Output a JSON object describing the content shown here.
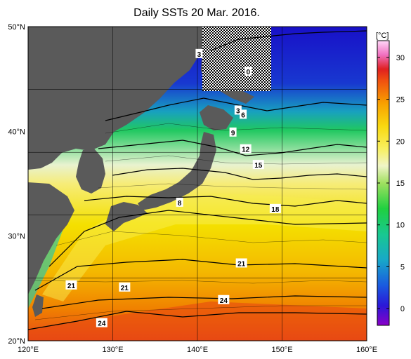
{
  "title": "Daily SSTs 20 Mar. 2016.",
  "colorbar": {
    "unit": "[°C]",
    "ticks": [
      {
        "label": "30",
        "value": 30
      },
      {
        "label": "25",
        "value": 25
      },
      {
        "label": "20",
        "value": 20
      },
      {
        "label": "15",
        "value": 15
      },
      {
        "label": "10",
        "value": 10
      },
      {
        "label": "5",
        "value": 5
      },
      {
        "label": "0",
        "value": 0
      }
    ],
    "range": [
      -2,
      32
    ]
  },
  "axes": {
    "lat_labels": [
      "50°N",
      "40°N",
      "30°N",
      "20°N"
    ],
    "lon_labels": [
      "120°E",
      "130°E",
      "140°E",
      "150°E",
      "160°E"
    ],
    "lat_range": [
      20,
      50
    ],
    "lon_range": [
      120,
      160
    ]
  },
  "contour_labels": [
    {
      "text": "3",
      "lon": 140.2,
      "lat": 47.4
    },
    {
      "text": "0",
      "lon": 146.0,
      "lat": 45.7
    },
    {
      "text": "3",
      "lon": 144.8,
      "lat": 42.0
    },
    {
      "text": "6",
      "lon": 145.4,
      "lat": 41.6
    },
    {
      "text": "9",
      "lon": 144.2,
      "lat": 39.9
    },
    {
      "text": "12",
      "lon": 145.7,
      "lat": 38.3
    },
    {
      "text": "15",
      "lon": 147.2,
      "lat": 36.8
    },
    {
      "text": "8",
      "lon": 137.9,
      "lat": 33.2
    },
    {
      "text": "18",
      "lon": 149.2,
      "lat": 32.6
    },
    {
      "text": "21",
      "lon": 145.2,
      "lat": 27.4
    },
    {
      "text": "21",
      "lon": 125.1,
      "lat": 25.3
    },
    {
      "text": "21",
      "lon": 131.4,
      "lat": 25.1
    },
    {
      "text": "24",
      "lon": 143.1,
      "lat": 23.9
    },
    {
      "text": "24",
      "lon": 128.7,
      "lat": 21.7
    }
  ],
  "colors": {
    "land": "#5a5a5a",
    "grid": "#000000"
  }
}
